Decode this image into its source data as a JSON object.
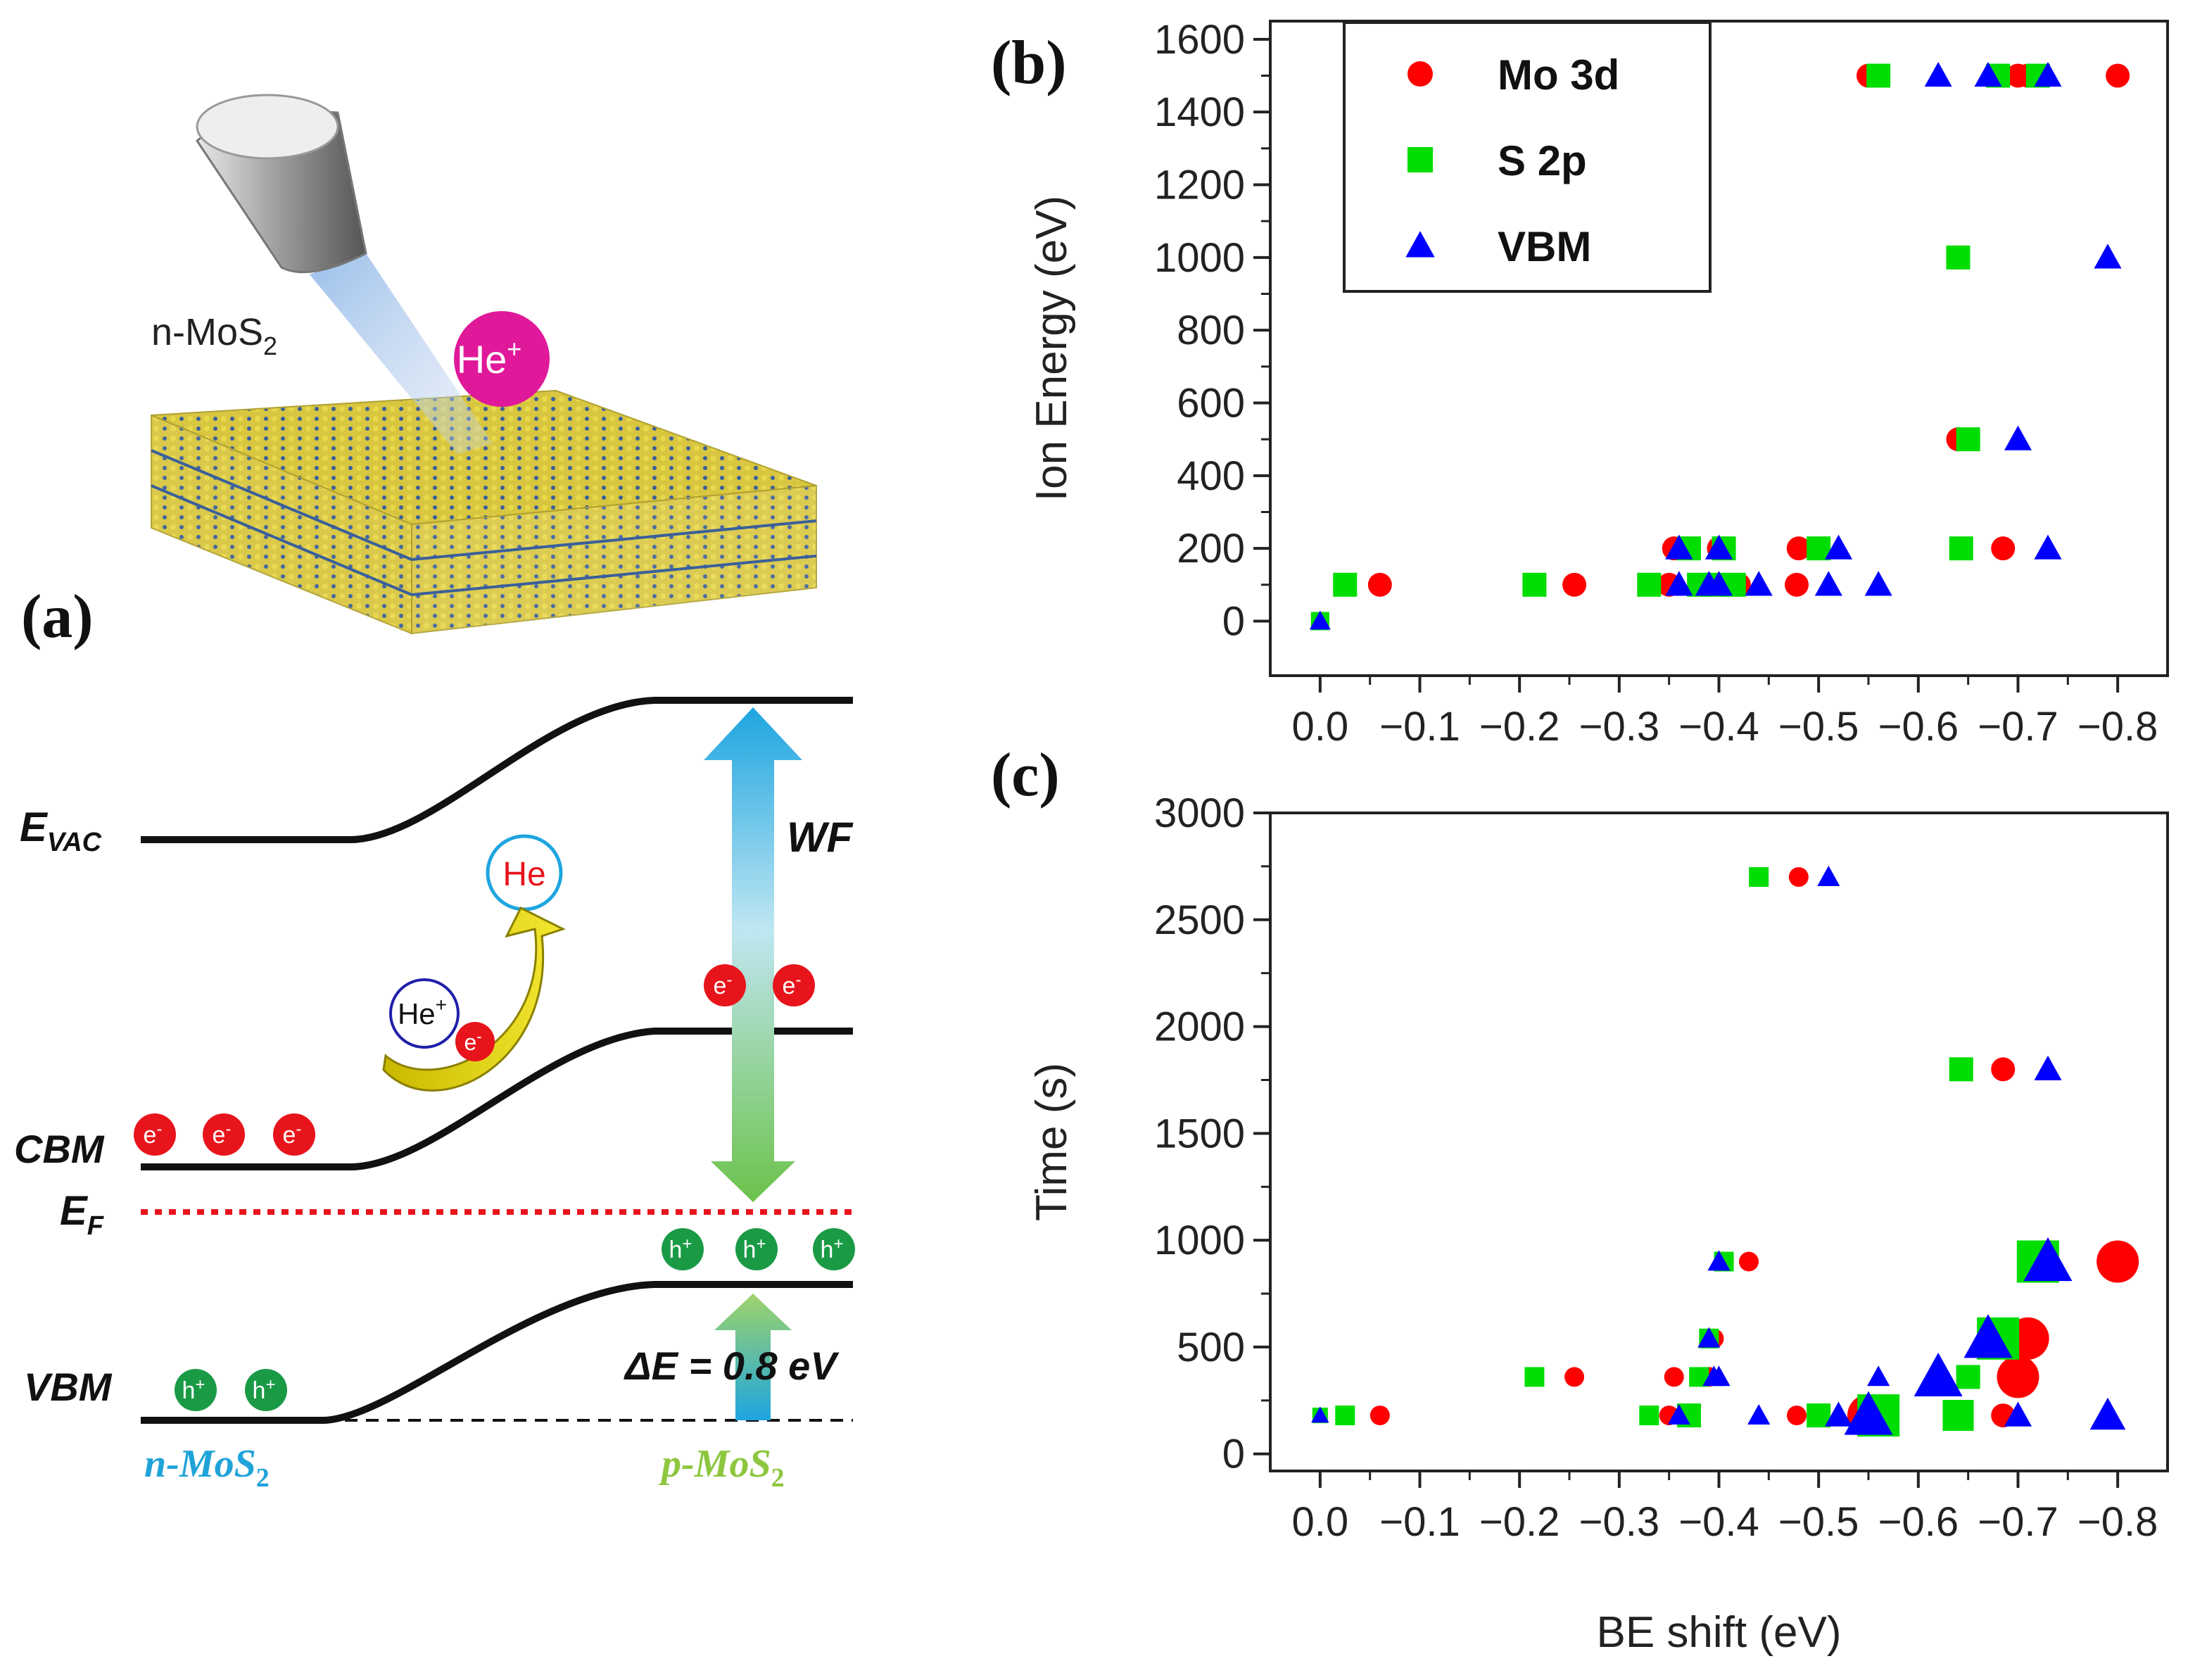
{
  "panel_a": {
    "label": "(a)",
    "sample_label": "n-MoS",
    "sample_sub": "2",
    "ion_label": "He",
    "ion_sup": "+",
    "bands": {
      "evac": "E",
      "evac_sub": "VAC",
      "cbm": "CBM",
      "ef": "E",
      "ef_sub": "F",
      "vbm": "VBM"
    },
    "wf_label": "WF",
    "delta_e_label": "ΔE = 0.8 eV",
    "neutral_he": "He",
    "he_plus": "He",
    "electron": "e",
    "hole": "h",
    "n_label": "n-MoS",
    "p_label": "p-MoS",
    "sub2": "2",
    "colors": {
      "electron": "#e8141c",
      "hole": "#1a9a45",
      "ion": "#e0189a",
      "ef_line": "#e8141c",
      "n_text": "#1fa3d8",
      "p_text": "#8dc63f"
    }
  },
  "chart_data": [
    {
      "id": "b",
      "type": "scatter",
      "label": "(b)",
      "title": "",
      "xlabel": "",
      "ylabel": "Ion Energy (eV)",
      "xlim": [
        0.05,
        -0.85
      ],
      "ylim": [
        -150,
        1650
      ],
      "xticks": [
        0.0,
        -0.1,
        -0.2,
        -0.3,
        -0.4,
        -0.5,
        -0.6,
        -0.7,
        -0.8
      ],
      "xtick_labels": [
        "0.0",
        "−0.1",
        "−0.2",
        "−0.3",
        "−0.4",
        "−0.5",
        "−0.6",
        "−0.7",
        "−0.8"
      ],
      "yticks": [
        0,
        200,
        400,
        600,
        800,
        1000,
        1200,
        1400,
        1600
      ],
      "ytick_labels": [
        "0",
        "200",
        "400",
        "600",
        "800",
        "1000",
        "1200",
        "1400",
        "1600"
      ],
      "legend": {
        "position": "top-left",
        "entries": [
          "Mo 3d",
          "S 2p",
          "VBM"
        ]
      },
      "series": [
        {
          "name": "Mo 3d",
          "marker": "circle",
          "color": "#ff0000",
          "x": [
            0.0,
            -0.06,
            -0.255,
            -0.35,
            -0.355,
            -0.39,
            -0.4,
            -0.42,
            -0.478,
            -0.48,
            -0.55,
            -0.64,
            -0.64,
            -0.685,
            -0.685,
            -0.7,
            -0.71,
            -0.8
          ],
          "y": [
            0,
            100,
            100,
            100,
            200,
            100,
            200,
            100,
            100,
            200,
            1500,
            1000,
            500,
            200,
            1500,
            1500,
            1500,
            1500
          ]
        },
        {
          "name": "S 2p",
          "marker": "square",
          "color": "#00dd00",
          "x": [
            0.0,
            -0.025,
            -0.215,
            -0.33,
            -0.37,
            -0.38,
            -0.395,
            -0.405,
            -0.415,
            -0.5,
            -0.56,
            -0.64,
            -0.643,
            -0.65,
            -0.68,
            -0.72
          ],
          "y": [
            0,
            100,
            100,
            100,
            200,
            100,
            100,
            200,
            100,
            200,
            1500,
            1000,
            200,
            500,
            1500,
            1500
          ]
        },
        {
          "name": "VBM",
          "marker": "triangle",
          "color": "#0000ff",
          "x": [
            0.0,
            -0.36,
            -0.36,
            -0.39,
            -0.4,
            -0.4,
            -0.44,
            -0.51,
            -0.52,
            -0.56,
            -0.62,
            -0.67,
            -0.7,
            -0.73,
            -0.73,
            -0.79
          ],
          "y": [
            0,
            100,
            200,
            100,
            100,
            200,
            100,
            100,
            200,
            100,
            1500,
            1500,
            500,
            200,
            1500,
            1000
          ]
        }
      ]
    },
    {
      "id": "c",
      "type": "scatter",
      "label": "(c)",
      "title": "",
      "xlabel": "BE shift (eV)",
      "ylabel": "Time (s)",
      "xlim": [
        0.05,
        -0.85
      ],
      "ylim": [
        -80,
        3000
      ],
      "xticks": [
        0.0,
        -0.1,
        -0.2,
        -0.3,
        -0.4,
        -0.5,
        -0.6,
        -0.7,
        -0.8
      ],
      "xtick_labels": [
        "0.0",
        "−0.1",
        "−0.2",
        "−0.3",
        "−0.4",
        "−0.5",
        "−0.6",
        "−0.7",
        "−0.8"
      ],
      "yticks": [
        0,
        500,
        1000,
        1500,
        2000,
        2500,
        3000
      ],
      "ytick_labels": [
        "0",
        "500",
        "1000",
        "1500",
        "2000",
        "2500",
        "3000"
      ],
      "note": "marker size scales with ion energy",
      "series": [
        {
          "name": "Mo 3d",
          "marker": "circle",
          "color": "#ff0000",
          "x": [
            0.0,
            -0.06,
            -0.255,
            -0.35,
            -0.355,
            -0.39,
            -0.395,
            -0.43,
            -0.478,
            -0.48,
            -0.55,
            -0.64,
            -0.685,
            -0.685,
            -0.7,
            -0.71,
            -0.8
          ],
          "y": [
            180,
            180,
            360,
            180,
            360,
            360,
            540,
            900,
            180,
            2700,
            180,
            180,
            1800,
            180,
            360,
            540,
            900
          ],
          "ion_energy": [
            0,
            100,
            100,
            100,
            100,
            100,
            100,
            100,
            100,
            100,
            1500,
            1000,
            200,
            200,
            1500,
            1500,
            1500
          ]
        },
        {
          "name": "S 2p",
          "marker": "square",
          "color": "#00dd00",
          "x": [
            0.0,
            -0.025,
            -0.215,
            -0.33,
            -0.37,
            -0.38,
            -0.39,
            -0.405,
            -0.44,
            -0.5,
            -0.56,
            -0.64,
            -0.643,
            -0.65,
            -0.68,
            -0.72
          ],
          "y": [
            180,
            180,
            360,
            180,
            180,
            360,
            540,
            900,
            2700,
            180,
            180,
            180,
            1800,
            360,
            540,
            900
          ],
          "ion_energy": [
            0,
            100,
            100,
            100,
            200,
            100,
            100,
            100,
            100,
            200,
            1500,
            1000,
            200,
            500,
            1500,
            1500
          ]
        },
        {
          "name": "VBM",
          "marker": "triangle",
          "color": "#0000ff",
          "x": [
            0.0,
            -0.36,
            -0.39,
            -0.395,
            -0.4,
            -0.4,
            -0.44,
            -0.51,
            -0.52,
            -0.55,
            -0.56,
            -0.62,
            -0.67,
            -0.7,
            -0.73,
            -0.73,
            -0.79
          ],
          "y": [
            180,
            180,
            540,
            360,
            360,
            900,
            180,
            2700,
            180,
            180,
            360,
            360,
            540,
            180,
            1800,
            900,
            180
          ],
          "ion_energy": [
            0,
            100,
            100,
            100,
            100,
            100,
            100,
            100,
            200,
            1500,
            100,
            1500,
            1500,
            500,
            200,
            1500,
            1000
          ]
        }
      ]
    }
  ]
}
